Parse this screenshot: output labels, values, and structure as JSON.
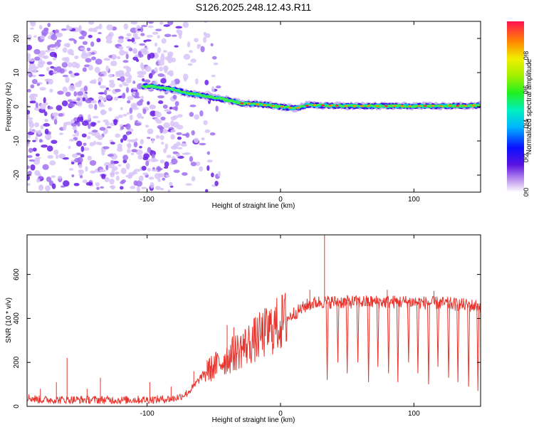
{
  "title": "S126.2025.248.12.43.R11",
  "colors": {
    "snr_line": "#e8342c",
    "spectrogram_ridge": "#1a1aff",
    "axis": "#000000"
  },
  "chart_data": [
    {
      "type": "heatmap",
      "name": "spectrogram",
      "xlabel": "Height of straight line (km)",
      "ylabel": "Frequency (Hz)",
      "xlim": [
        -190,
        150
      ],
      "ylim": [
        -25,
        25
      ],
      "xticks": [
        -100,
        0,
        100
      ],
      "yticks": [
        -20,
        -10,
        0,
        10,
        20
      ],
      "ridge": {
        "x": [
          -103,
          -95,
          -88,
          -80,
          -70,
          -62,
          -55,
          -48,
          -40,
          -30,
          -20,
          -10,
          0,
          10,
          20,
          40,
          60,
          80,
          100,
          120,
          140,
          150
        ],
        "freq": [
          6,
          6,
          5.5,
          5,
          4,
          3.5,
          3,
          2.5,
          2,
          1,
          0.8,
          0.5,
          0,
          -0.5,
          0.5,
          0.3,
          0.2,
          0.2,
          0.2,
          0.2,
          0.3,
          0.4
        ]
      },
      "noise_region": [
        -190,
        -55
      ],
      "colorbar": {
        "label": "Normalized spectral amplitude",
        "range": [
          0,
          1
        ],
        "ticks": [
          0.0,
          0.2,
          0.4,
          0.6,
          0.8
        ],
        "tick_labels": [
          "0.0",
          "0.2",
          "0.4",
          "0.6",
          "0.8"
        ]
      }
    },
    {
      "type": "line",
      "name": "snr",
      "xlabel": "Height of straight line (km)",
      "ylabel": "SNR (10 * v/v)",
      "xlim": [
        -190,
        150
      ],
      "ylim": [
        0,
        780
      ],
      "xticks": [
        -100,
        0,
        100
      ],
      "yticks": [
        0,
        200,
        400,
        600
      ],
      "series": [
        {
          "name": "SNR",
          "x": [
            -190,
            -180,
            -170,
            -160,
            -150,
            -140,
            -130,
            -120,
            -110,
            -100,
            -90,
            -80,
            -75,
            -70,
            -65,
            -60,
            -55,
            -50,
            -45,
            -40,
            -35,
            -30,
            -25,
            -20,
            -15,
            -10,
            -5,
            0,
            5,
            10,
            15,
            20,
            25,
            30,
            40,
            50,
            60,
            70,
            80,
            90,
            100,
            110,
            120,
            130,
            140,
            150
          ],
          "y": [
            40,
            30,
            30,
            30,
            30,
            30,
            30,
            28,
            30,
            30,
            32,
            35,
            45,
            60,
            90,
            130,
            160,
            180,
            200,
            220,
            240,
            260,
            280,
            300,
            320,
            340,
            360,
            380,
            400,
            420,
            440,
            460,
            470,
            475,
            475,
            475,
            475,
            475,
            475,
            475,
            475,
            470,
            470,
            465,
            460,
            455
          ]
        }
      ],
      "spikes": [
        {
          "x": -190,
          "y": 110
        },
        {
          "x": -180,
          "y": 80
        },
        {
          "x": -168,
          "y": 110
        },
        {
          "x": -160,
          "y": 220
        },
        {
          "x": -145,
          "y": 80
        },
        {
          "x": -135,
          "y": 130
        },
        {
          "x": -98,
          "y": 110
        },
        {
          "x": -82,
          "y": 90
        },
        {
          "x": -65,
          "y": 160
        },
        {
          "x": -55,
          "y": 210
        },
        {
          "x": -40,
          "y": 370
        },
        {
          "x": -35,
          "y": 360
        },
        {
          "x": -28,
          "y": 330
        },
        {
          "x": 10,
          "y": 450
        },
        {
          "x": 22,
          "y": 530
        },
        {
          "x": 33,
          "y": 780
        },
        {
          "x": 80,
          "y": 530
        },
        {
          "x": 115,
          "y": 525
        }
      ],
      "dropouts": [
        {
          "x": 35,
          "y": 120
        },
        {
          "x": 43,
          "y": 200
        },
        {
          "x": 50,
          "y": 150
        },
        {
          "x": 58,
          "y": 200
        },
        {
          "x": 66,
          "y": 110
        },
        {
          "x": 73,
          "y": 180
        },
        {
          "x": 81,
          "y": 150
        },
        {
          "x": 88,
          "y": 110
        },
        {
          "x": 96,
          "y": 200
        },
        {
          "x": 103,
          "y": 150
        },
        {
          "x": 111,
          "y": 100
        },
        {
          "x": 118,
          "y": 180
        },
        {
          "x": 126,
          "y": 130
        },
        {
          "x": 133,
          "y": 110
        },
        {
          "x": 141,
          "y": 90
        },
        {
          "x": 148,
          "y": 70
        }
      ]
    }
  ]
}
